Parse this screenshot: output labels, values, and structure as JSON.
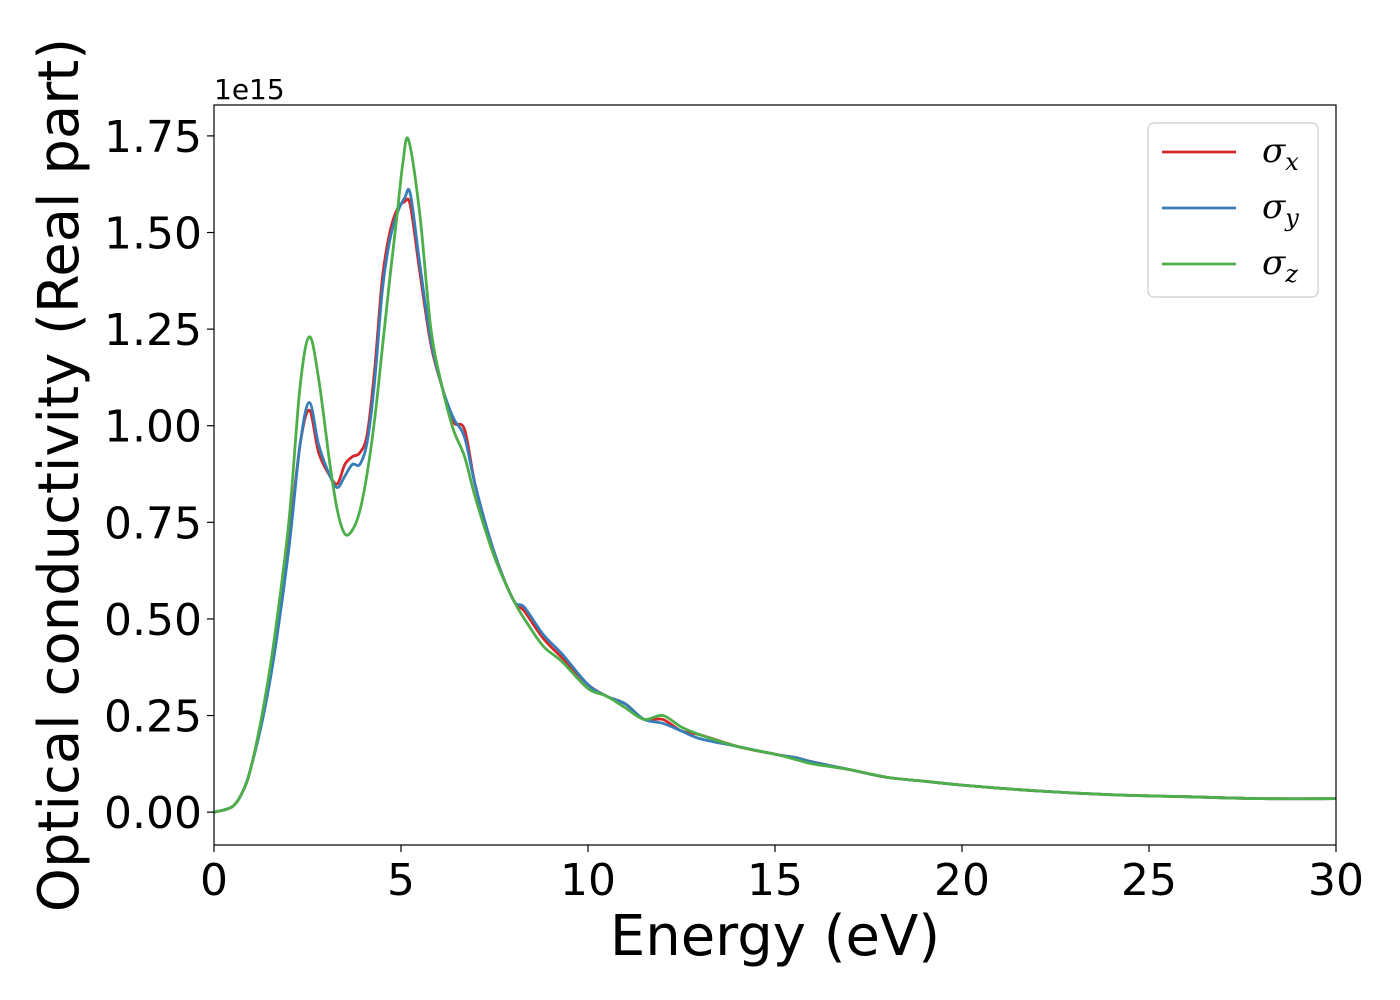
{
  "chart_data": {
    "type": "line",
    "xlabel": "Energy (eV)",
    "ylabel": "Optical conductivity (Real part)",
    "y_offset_label": "1e15",
    "xlim": [
      0,
      30
    ],
    "ylim": [
      -0.085,
      1.83
    ],
    "x_ticks": [
      0,
      5,
      10,
      15,
      20,
      25,
      30
    ],
    "x_tick_labels": [
      "0",
      "5",
      "10",
      "15",
      "20",
      "25",
      "30"
    ],
    "y_ticks": [
      0.0,
      0.25,
      0.5,
      0.75,
      1.0,
      1.25,
      1.5,
      1.75
    ],
    "y_tick_labels": [
      "0.00",
      "0.25",
      "0.50",
      "0.75",
      "1.00",
      "1.25",
      "1.50",
      "1.75"
    ],
    "grid": false,
    "legend_position": "upper right",
    "series": [
      {
        "name": "σx",
        "legend_symbol": "σ",
        "legend_sub": "x",
        "color": "#d62728",
        "x": [
          0,
          0.5,
          0.8,
          1.0,
          1.3,
          1.6,
          2.0,
          2.3,
          2.55,
          2.8,
          3.1,
          3.3,
          3.5,
          3.7,
          3.9,
          4.1,
          4.3,
          4.5,
          4.7,
          4.9,
          5.1,
          5.25,
          5.5,
          5.8,
          6.1,
          6.4,
          6.7,
          7.0,
          7.5,
          8.0,
          8.3,
          8.8,
          9.3,
          10.0,
          10.5,
          11.0,
          11.5,
          12.0,
          12.5,
          13.0,
          14.0,
          15.0,
          15.6,
          16.0,
          17.0,
          18.0,
          19.0,
          20.0,
          22.0,
          24.0,
          26.0,
          28.0,
          30.0
        ],
        "y": [
          0.0,
          0.015,
          0.06,
          0.12,
          0.25,
          0.42,
          0.7,
          0.95,
          1.04,
          0.93,
          0.87,
          0.85,
          0.9,
          0.92,
          0.93,
          0.98,
          1.15,
          1.38,
          1.5,
          1.56,
          1.58,
          1.57,
          1.4,
          1.21,
          1.1,
          1.01,
          0.99,
          0.84,
          0.67,
          0.55,
          0.52,
          0.45,
          0.4,
          0.33,
          0.3,
          0.28,
          0.24,
          0.24,
          0.21,
          0.2,
          0.17,
          0.15,
          0.14,
          0.13,
          0.11,
          0.09,
          0.08,
          0.07,
          0.055,
          0.045,
          0.04,
          0.035,
          0.035
        ]
      },
      {
        "name": "σy",
        "legend_symbol": "σ",
        "legend_sub": "y",
        "color": "#377eb8",
        "x": [
          0,
          0.5,
          0.8,
          1.0,
          1.3,
          1.6,
          2.0,
          2.3,
          2.55,
          2.8,
          3.1,
          3.3,
          3.5,
          3.7,
          3.9,
          4.1,
          4.3,
          4.5,
          4.7,
          4.9,
          5.1,
          5.25,
          5.5,
          5.8,
          6.1,
          6.4,
          6.7,
          7.0,
          7.5,
          8.0,
          8.3,
          8.8,
          9.3,
          10.0,
          10.5,
          11.0,
          11.5,
          12.0,
          12.5,
          13.0,
          14.0,
          15.0,
          15.6,
          16.0,
          17.0,
          18.0,
          19.0,
          20.0,
          22.0,
          24.0,
          26.0,
          28.0,
          30.0
        ],
        "y": [
          0.0,
          0.015,
          0.06,
          0.12,
          0.24,
          0.4,
          0.68,
          0.95,
          1.06,
          0.95,
          0.87,
          0.84,
          0.87,
          0.9,
          0.9,
          0.96,
          1.12,
          1.35,
          1.48,
          1.55,
          1.59,
          1.6,
          1.42,
          1.22,
          1.1,
          1.02,
          0.97,
          0.84,
          0.67,
          0.55,
          0.53,
          0.46,
          0.41,
          0.33,
          0.3,
          0.28,
          0.24,
          0.23,
          0.21,
          0.19,
          0.17,
          0.15,
          0.14,
          0.13,
          0.11,
          0.09,
          0.08,
          0.07,
          0.055,
          0.045,
          0.04,
          0.035,
          0.035
        ]
      },
      {
        "name": "σz",
        "legend_symbol": "σ",
        "legend_sub": "z",
        "color": "#4daf4a",
        "x": [
          0,
          0.5,
          0.8,
          1.0,
          1.3,
          1.6,
          2.0,
          2.3,
          2.55,
          2.8,
          3.1,
          3.3,
          3.5,
          3.7,
          3.9,
          4.1,
          4.3,
          4.5,
          4.7,
          4.9,
          5.05,
          5.2,
          5.5,
          5.8,
          6.1,
          6.4,
          6.7,
          7.0,
          7.5,
          8.0,
          8.3,
          8.8,
          9.3,
          10.0,
          10.5,
          11.0,
          11.5,
          12.0,
          12.5,
          13.0,
          14.0,
          15.0,
          15.6,
          16.0,
          17.0,
          18.0,
          19.0,
          20.0,
          22.0,
          24.0,
          26.0,
          28.0,
          30.0
        ],
        "y": [
          0.0,
          0.015,
          0.06,
          0.12,
          0.26,
          0.44,
          0.75,
          1.1,
          1.23,
          1.12,
          0.9,
          0.78,
          0.72,
          0.73,
          0.78,
          0.88,
          1.02,
          1.2,
          1.38,
          1.55,
          1.68,
          1.74,
          1.55,
          1.25,
          1.1,
          0.99,
          0.92,
          0.81,
          0.66,
          0.55,
          0.5,
          0.43,
          0.39,
          0.32,
          0.3,
          0.27,
          0.24,
          0.25,
          0.22,
          0.2,
          0.17,
          0.15,
          0.135,
          0.125,
          0.11,
          0.09,
          0.08,
          0.07,
          0.055,
          0.045,
          0.04,
          0.035,
          0.035
        ]
      }
    ]
  }
}
